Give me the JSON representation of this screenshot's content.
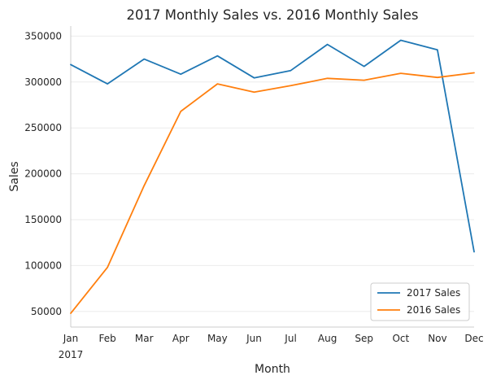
{
  "chart_data": {
    "type": "line",
    "title": "2017 Monthly Sales vs. 2016 Monthly Sales",
    "xlabel": "Month",
    "ylabel": "Sales",
    "categories": [
      "Jan",
      "Feb",
      "Mar",
      "Apr",
      "May",
      "Jun",
      "Jul",
      "Aug",
      "Sep",
      "Oct",
      "Nov",
      "Dec"
    ],
    "year_label": "2017",
    "yticks": [
      50000,
      100000,
      150000,
      200000,
      250000,
      300000,
      350000
    ],
    "ylim": [
      33000,
      361000
    ],
    "grid": "horizontal",
    "legend_position": "lower-right",
    "series": [
      {
        "name": "2017 Sales",
        "color": "#1f77b4",
        "values": [
          319000,
          298000,
          325000,
          308500,
          328500,
          304500,
          312500,
          341000,
          317000,
          345500,
          335000,
          115000
        ]
      },
      {
        "name": "2016 Sales",
        "color": "#ff7f0e",
        "values": [
          48000,
          98000,
          187000,
          268000,
          298000,
          289000,
          296000,
          304000,
          302000,
          309500,
          305000,
          310000
        ]
      }
    ]
  }
}
